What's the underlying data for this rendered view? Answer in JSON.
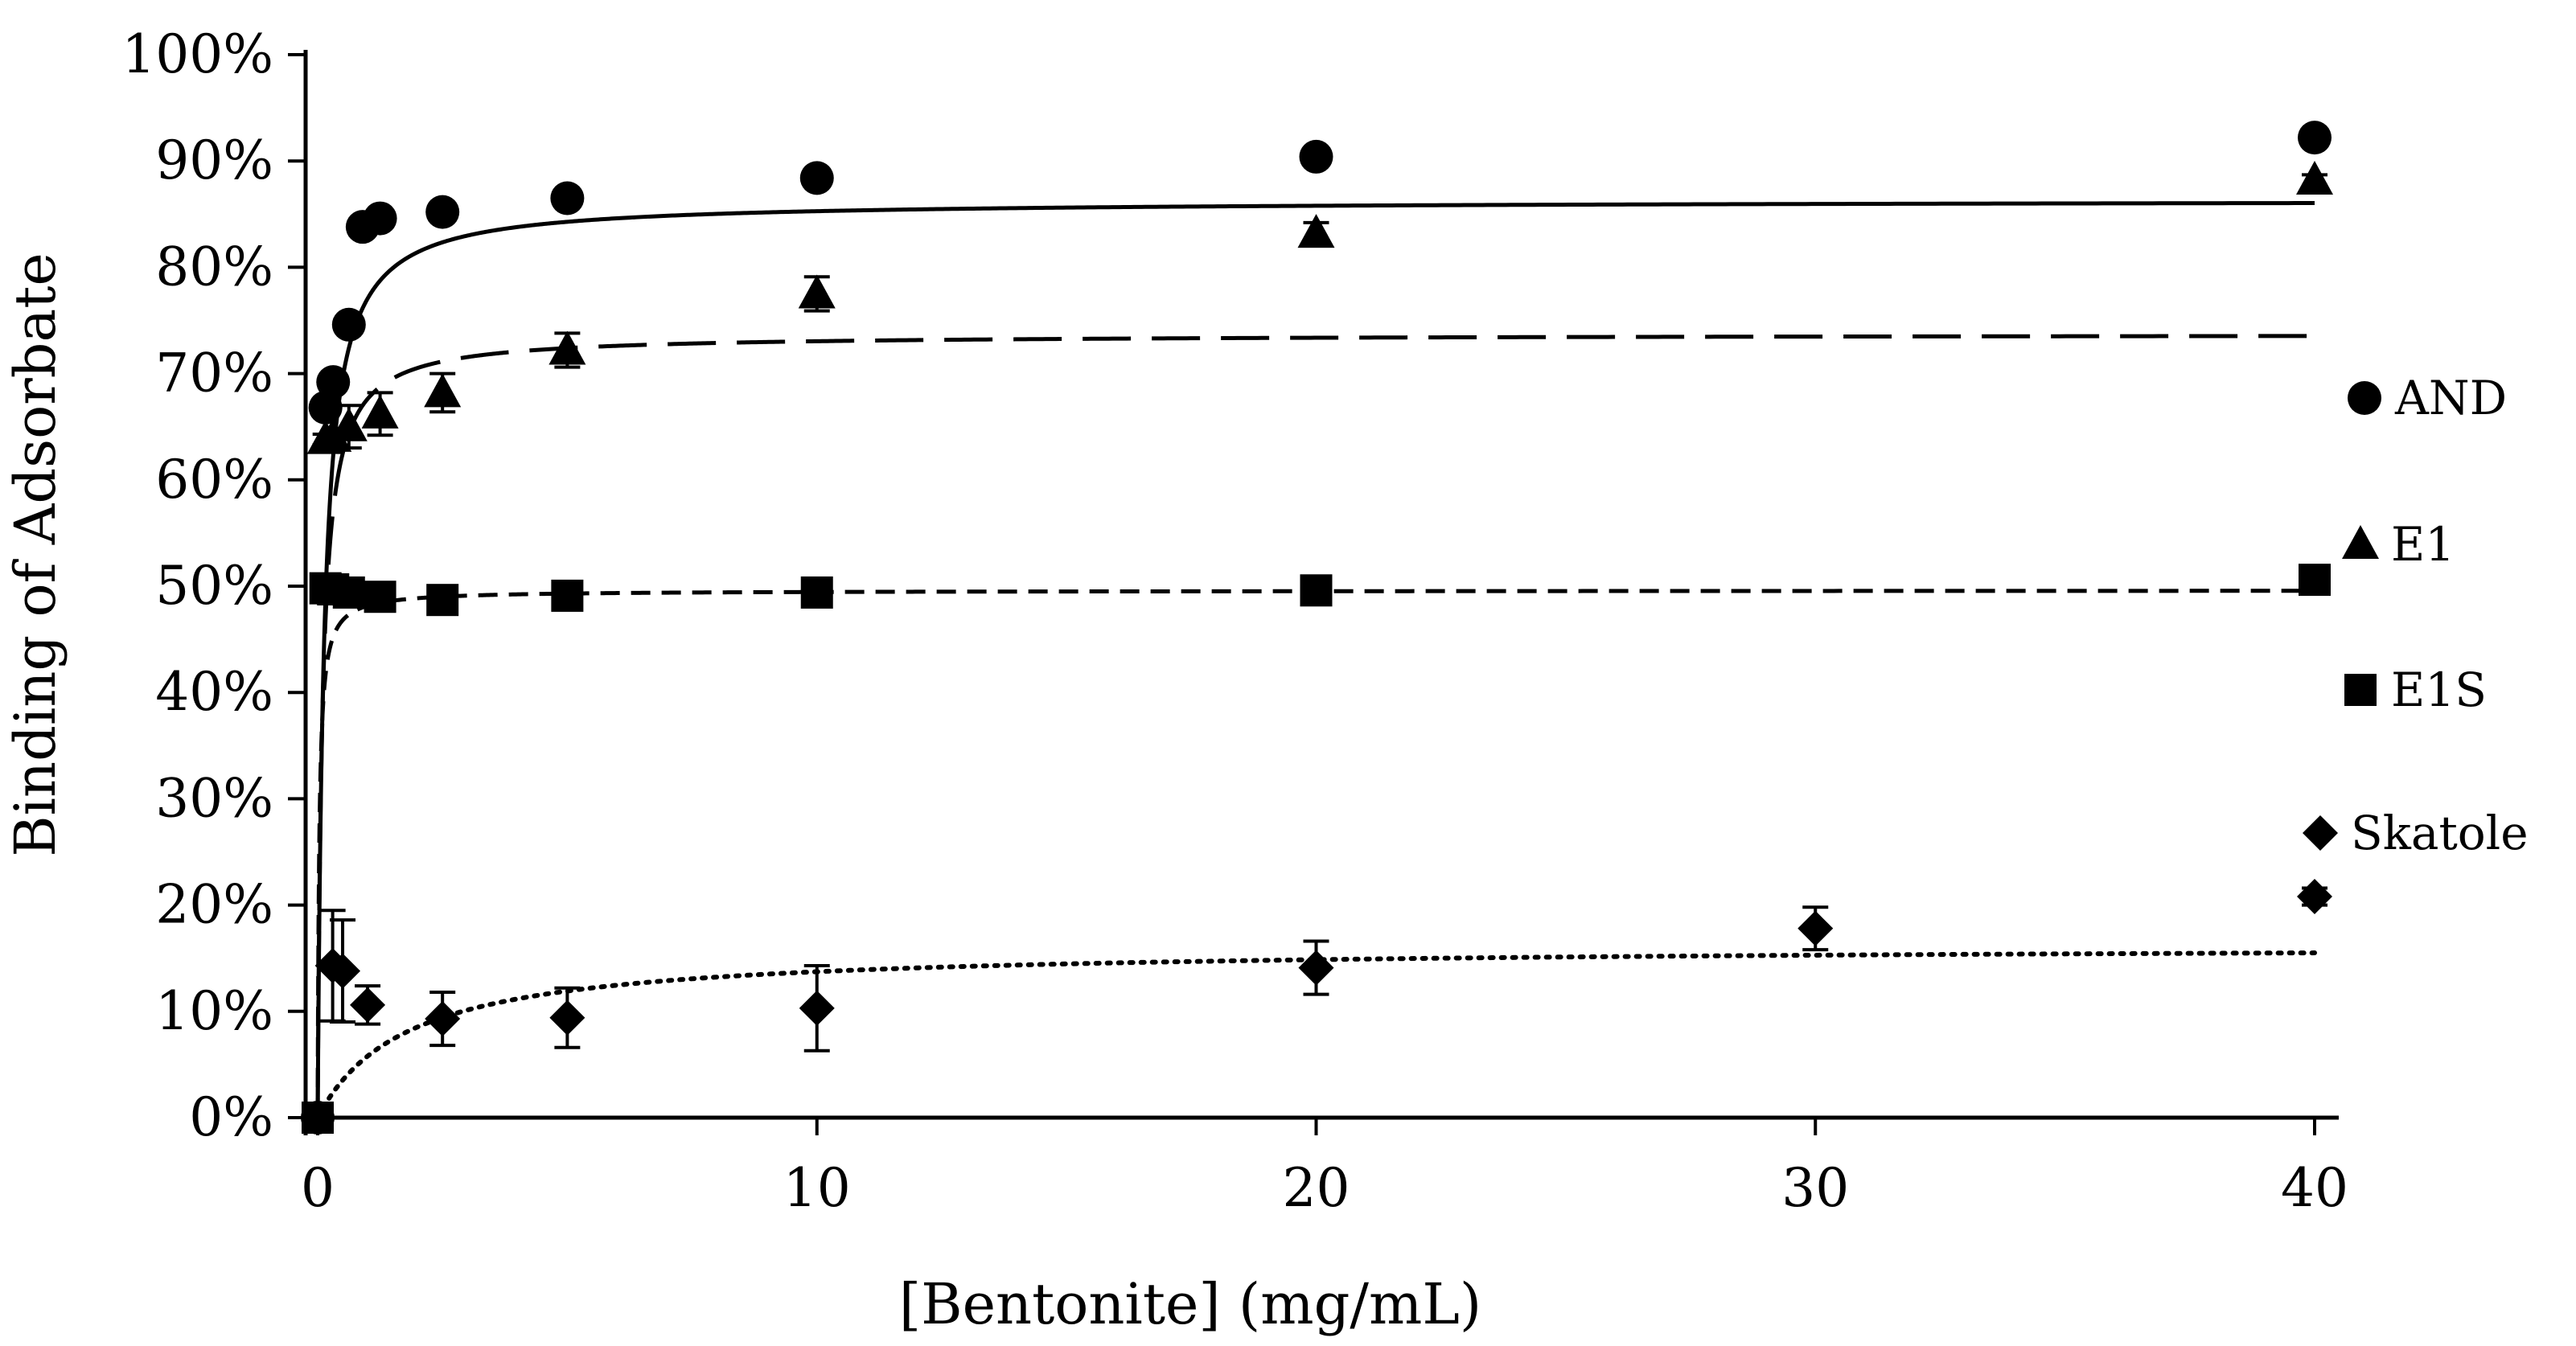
{
  "chart_data": {
    "type": "scatter",
    "title": "",
    "xlabel": "[Bentonite] (mg/mL)",
    "ylabel": "Binding of Adsorbate",
    "xlim": [
      0,
      40
    ],
    "ylim": [
      0,
      100
    ],
    "x_ticks": [
      0,
      10,
      20,
      30,
      40
    ],
    "y_ticks": [
      0,
      10,
      20,
      30,
      40,
      50,
      60,
      70,
      80,
      90,
      100
    ],
    "x_tick_labels": [
      "0",
      "10",
      "20",
      "30",
      "40"
    ],
    "y_tick_labels": [
      "0%",
      "10%",
      "20%",
      "30%",
      "40%",
      "50%",
      "60%",
      "70%",
      "80%",
      "90%",
      "100%"
    ],
    "grid": false,
    "legend_position": "right",
    "series": [
      {
        "name": "AND",
        "marker": "circle",
        "points": [
          {
            "x": 0,
            "y": 0,
            "err": 0
          },
          {
            "x": 0.156,
            "y": 66.8,
            "err": 0
          },
          {
            "x": 0.31,
            "y": 69.2,
            "err": 0
          },
          {
            "x": 0.625,
            "y": 74.6,
            "err": 0
          },
          {
            "x": 1.25,
            "y": 84.6,
            "err": 0
          },
          {
            "x": 2.5,
            "y": 85.2,
            "err": 0
          },
          {
            "x": 5,
            "y": 86.5,
            "err": 0
          },
          {
            "x": 10,
            "y": 88.4,
            "err": 0
          },
          {
            "x": 20,
            "y": 90.4,
            "err": 0
          },
          {
            "x": 40,
            "y": 92.2,
            "err": 0
          }
        ],
        "extra_points": [
          {
            "x": 0.9,
            "y": 83.8,
            "err": 0
          }
        ],
        "fit": {
          "style": "solid",
          "ymax": 86.3,
          "k": 0.12,
          "x_end": 40
        }
      },
      {
        "name": "E1",
        "marker": "triangle",
        "points": [
          {
            "x": 0.156,
            "y": 63.8,
            "err": 0.5
          },
          {
            "x": 0.31,
            "y": 64.0,
            "err": 0.6
          },
          {
            "x": 0.625,
            "y": 65.0,
            "err": 2.0
          },
          {
            "x": 1.25,
            "y": 66.2,
            "err": 2.0
          },
          {
            "x": 2.5,
            "y": 68.2,
            "err": 1.8
          },
          {
            "x": 5,
            "y": 72.2,
            "err": 1.6
          },
          {
            "x": 10,
            "y": 77.5,
            "err": 1.6
          },
          {
            "x": 20,
            "y": 83.2,
            "err": 1.0
          },
          {
            "x": 40,
            "y": 88.2,
            "err": 0.5
          }
        ],
        "fit": {
          "style": "long-dash",
          "ymax": 73.7,
          "k": 0.09,
          "x_end": 40
        }
      },
      {
        "name": "E1S",
        "marker": "square",
        "points": [
          {
            "x": 0,
            "y": 0,
            "err": 0
          },
          {
            "x": 0.156,
            "y": 49.8,
            "err": 0
          },
          {
            "x": 0.31,
            "y": 49.7,
            "err": 0
          },
          {
            "x": 0.625,
            "y": 49.4,
            "err": 0
          },
          {
            "x": 1.25,
            "y": 49.0,
            "err": 0
          },
          {
            "x": 2.5,
            "y": 48.7,
            "err": 0
          },
          {
            "x": 5,
            "y": 49.1,
            "err": 0
          },
          {
            "x": 10,
            "y": 49.4,
            "err": 0
          },
          {
            "x": 20,
            "y": 49.6,
            "err": 0
          },
          {
            "x": 40,
            "y": 50.6,
            "err": 0
          }
        ],
        "fit": {
          "style": "short-dash",
          "ymax": 49.6,
          "k": 0.03,
          "x_end": 40
        }
      },
      {
        "name": "Skatole",
        "marker": "diamond",
        "points": [
          {
            "x": 0.3,
            "y": 14.3,
            "err": 5.2
          },
          {
            "x": 0.5,
            "y": 13.8,
            "err": 4.8
          },
          {
            "x": 1.0,
            "y": 10.6,
            "err": 1.8
          },
          {
            "x": 2.5,
            "y": 9.3,
            "err": 2.5
          },
          {
            "x": 5,
            "y": 9.4,
            "err": 2.8
          },
          {
            "x": 10,
            "y": 10.3,
            "err": 4.0
          },
          {
            "x": 20,
            "y": 14.1,
            "err": 2.5
          },
          {
            "x": 30,
            "y": 17.8,
            "err": 2.0
          },
          {
            "x": 40,
            "y": 20.8,
            "err": 0.8
          }
        ],
        "fit": {
          "style": "dotted",
          "ymax": 16.2,
          "k": 1.8,
          "x_end": 40
        }
      }
    ]
  }
}
